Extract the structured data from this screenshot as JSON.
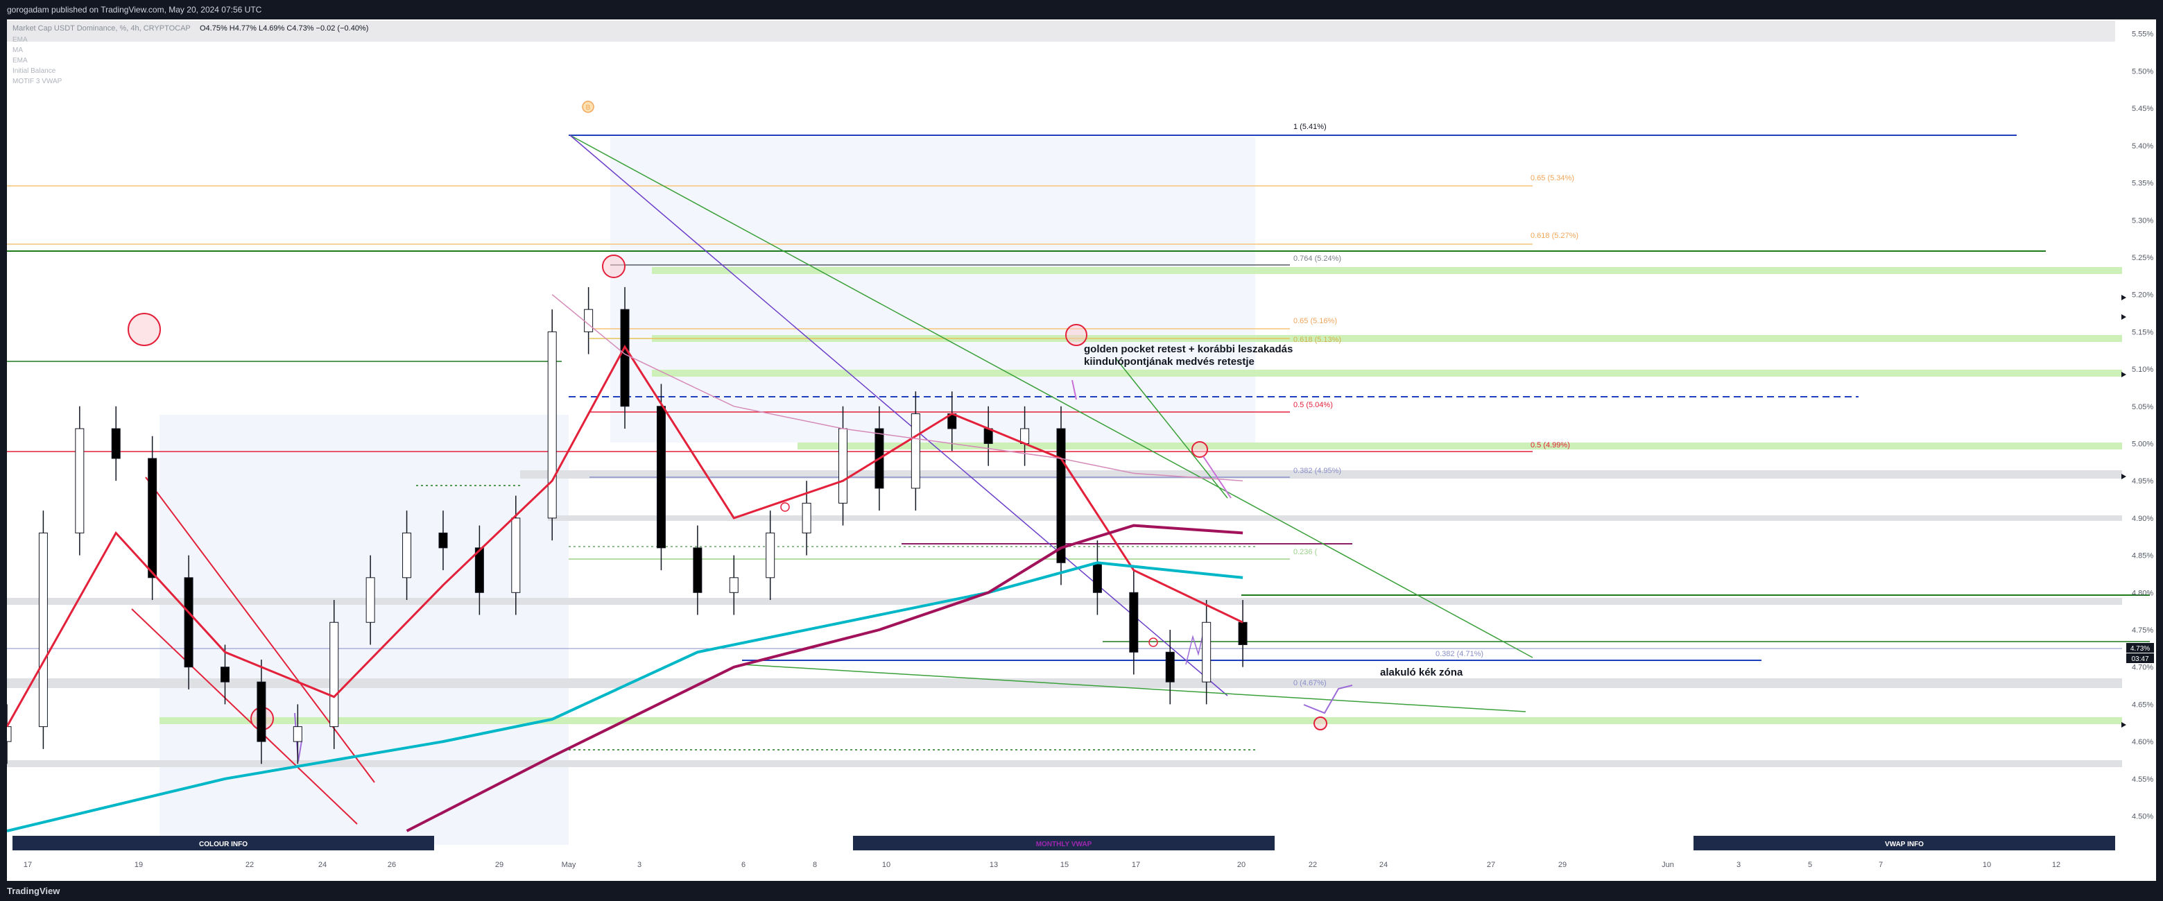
{
  "header": {
    "published_by": "gorogadam published on TradingView.com, May 20, 2024 07:56 UTC"
  },
  "legend": {
    "symbol": "Market Cap USDT Dominance, %, 4h, CRYPTOCAP",
    "ohlc": "O4.75%  H4.77%  L4.69%  C4.73%  −0.02 (−0.40%)",
    "indicators": [
      "EMA",
      "MA",
      "EMA",
      "Initial Balance",
      "MOTIF 3 VWAP"
    ]
  },
  "footer": {
    "brand": "TradingView"
  },
  "colors": {
    "background": "#ffffff",
    "up_candle": "#ffffff",
    "down_candle": "#000000",
    "ema_red": "#e3213b",
    "ma_maroon": "#a1125a",
    "ema_cyan": "#00b7c7",
    "fib_blue": "#1f3fbf",
    "trend_green": "#3aa03a",
    "trend_red": "#e3213b",
    "trend_purple": "#6b3fc9",
    "zone_green": "#cdf0b9",
    "zone_gray": "#dfe0e4"
  },
  "price_axis": {
    "ticks": [
      "5.55%",
      "5.50%",
      "5.45%",
      "5.40%",
      "5.35%",
      "5.30%",
      "5.25%",
      "5.20%",
      "5.15%",
      "5.10%",
      "5.05%",
      "5.00%",
      "4.95%",
      "4.90%",
      "4.85%",
      "4.80%",
      "4.75%",
      "4.70%",
      "4.65%",
      "4.60%",
      "4.55%",
      "4.50%"
    ],
    "current_price": "4.73%",
    "countdown": "03:47"
  },
  "time_axis": {
    "ticks": [
      "17",
      "19",
      "22",
      "24",
      "26",
      "29",
      "May",
      "3",
      "6",
      "8",
      "10",
      "13",
      "15",
      "17",
      "20",
      "22",
      "24",
      "27",
      "29",
      "Jun",
      "3",
      "5",
      "7",
      "10",
      "12"
    ]
  },
  "fib_labels": [
    {
      "text": "1 (5.41%)",
      "color": "#131722"
    },
    {
      "text": "0.65 (5.34%)",
      "color": "#f2a65a"
    },
    {
      "text": "0.618 (5.27%)",
      "color": "#f2a65a"
    },
    {
      "text": "0.764 (5.24%)",
      "color": "#7a7f8a"
    },
    {
      "text": "0.65 (5.16%)",
      "color": "#f2a65a"
    },
    {
      "text": "0.618 (5.13%)",
      "color": "#d4b04a"
    },
    {
      "text": "0.5 (5.04%)",
      "color": "#e3213b"
    },
    {
      "text": "0.5 (4.99%)",
      "color": "#e3213b"
    },
    {
      "text": "0.382 (4.95%)",
      "color": "#8a8fc9"
    },
    {
      "text": "0.236 (",
      "color": "#9ad18a"
    },
    {
      "text": "0.382 (4.71%)",
      "color": "#8a8fc9"
    },
    {
      "text": "0 (4.67%)",
      "color": "#8a8fc9"
    }
  ],
  "annotations": {
    "golden_pocket": "golden pocket retest + korábbi leszakadás\nkiindulópontjának medvés retestje",
    "blue_zone": "alakuló kék zóna",
    "marker_b": "B"
  },
  "panels": [
    {
      "label": "COLOUR INFO",
      "color": "#ffffff"
    },
    {
      "label": "MONTHLY VWAP",
      "color": "#9c27b0"
    },
    {
      "label": "VWAP INFO",
      "color": "#ffffff"
    }
  ],
  "chart_data": {
    "type": "line",
    "title": "",
    "x_unit": "date (4h candles)",
    "y_unit": "%",
    "ylim": [
      4.48,
      5.56
    ],
    "xlim": [
      "2024-04-16",
      "2024-06-13"
    ],
    "grid": false,
    "series": [
      {
        "name": "",
        "kind": "close_approx",
        "x": [
          "2024-04-16",
          "2024-04-17",
          "2024-04-18",
          "2024-04-19",
          "2024-04-20",
          "2024-04-21",
          "2024-04-22",
          "2024-04-23",
          "2024-04-24",
          "2024-04-25",
          "2024-04-26",
          "2024-04-27",
          "2024-04-28",
          "2024-04-29",
          "2024-04-30",
          "2024-05-01",
          "2024-05-02",
          "2024-05-03",
          "2024-05-04",
          "2024-05-05",
          "2024-05-06",
          "2024-05-07",
          "2024-05-08",
          "2024-05-09",
          "2024-05-10",
          "2024-05-11",
          "2024-05-12",
          "2024-05-13",
          "2024-05-14",
          "2024-05-15",
          "2024-05-16",
          "2024-05-17",
          "2024-05-18",
          "2024-05-19",
          "2024-05-20"
        ],
        "y": [
          4.62,
          4.88,
          5.02,
          4.98,
          4.82,
          4.7,
          4.68,
          4.6,
          4.62,
          4.76,
          4.82,
          4.88,
          4.86,
          4.8,
          4.9,
          5.15,
          5.18,
          5.05,
          4.86,
          4.8,
          4.82,
          4.88,
          4.92,
          5.02,
          4.94,
          5.04,
          5.02,
          5.0,
          5.02,
          4.84,
          4.8,
          4.72,
          4.68,
          4.76,
          4.73
        ]
      },
      {
        "name": "EMA",
        "x": [
          "2024-04-16",
          "2024-04-19",
          "2024-04-22",
          "2024-04-25",
          "2024-04-28",
          "2024-05-01",
          "2024-05-03",
          "2024-05-06",
          "2024-05-09",
          "2024-05-12",
          "2024-05-15",
          "2024-05-17",
          "2024-05-20"
        ],
        "y": [
          4.62,
          4.88,
          4.72,
          4.66,
          4.81,
          4.95,
          5.13,
          4.9,
          4.95,
          5.04,
          4.98,
          4.83,
          4.76
        ]
      },
      {
        "name": "MA",
        "x": [
          "2024-05-01",
          "2024-05-03",
          "2024-05-06",
          "2024-05-09",
          "2024-05-12",
          "2024-05-15",
          "2024-05-17",
          "2024-05-20"
        ],
        "y": [
          5.2,
          5.12,
          5.05,
          5.02,
          5.0,
          4.98,
          4.96,
          4.95
        ]
      },
      {
        "name": "EMA",
        "x": [
          "2024-04-16",
          "2024-04-22",
          "2024-04-28",
          "2024-05-01",
          "2024-05-05",
          "2024-05-09",
          "2024-05-13",
          "2024-05-16",
          "2024-05-20"
        ],
        "y": [
          4.48,
          4.55,
          4.6,
          4.63,
          4.72,
          4.76,
          4.8,
          4.84,
          4.82
        ]
      },
      {
        "name": "EMA",
        "x": [
          "2024-04-27",
          "2024-05-01",
          "2024-05-06",
          "2024-05-10",
          "2024-05-13",
          "2024-05-15",
          "2024-05-17",
          "2024-05-20"
        ],
        "y": [
          4.48,
          4.58,
          4.7,
          4.75,
          4.8,
          4.86,
          4.89,
          4.88
        ]
      }
    ]
  }
}
